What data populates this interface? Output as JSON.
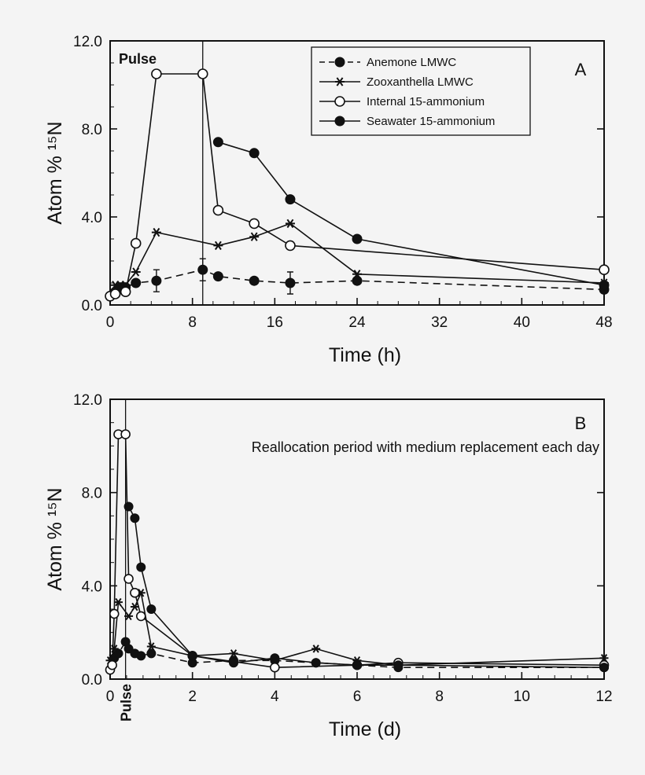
{
  "chart_data": [
    {
      "panel": "A",
      "type": "line",
      "xlabel": "Time (h)",
      "ylabel": "Atom % ¹⁵N",
      "xlim": [
        0,
        48
      ],
      "ylim": [
        0,
        12
      ],
      "xticks": [
        0,
        8,
        16,
        24,
        32,
        40,
        48
      ],
      "yticks": [
        0,
        4,
        8,
        12
      ],
      "ytick_labels": [
        "0.0",
        "4.0",
        "8.0",
        "12.0"
      ],
      "grid": false,
      "legend_position": "top-right",
      "annotations": [
        {
          "text": "Pulse",
          "at_x": 9
        }
      ],
      "series": [
        {
          "name": "Anemone LMWC",
          "marker": "filled-circle",
          "line": "dashed",
          "x": [
            0,
            0.5,
            1,
            1.5,
            2.5,
            4.5,
            9,
            10.5,
            14,
            17.5,
            24,
            48
          ],
          "y": [
            0.4,
            0.6,
            0.8,
            0.8,
            1.0,
            1.1,
            1.6,
            1.3,
            1.1,
            1.0,
            1.1,
            0.7
          ],
          "yerr_points": [
            {
              "x": 4.5,
              "y": 1.1
            },
            {
              "x": 9,
              "y": 1.6
            },
            {
              "x": 17.5,
              "y": 1.0
            }
          ]
        },
        {
          "name": "Zooxanthella LMWC",
          "marker": "asterisk",
          "line": "solid",
          "x": [
            0,
            0.5,
            1,
            1.5,
            2.5,
            4.5,
            10.5,
            14,
            17.5,
            24,
            48
          ],
          "y": [
            0.4,
            0.9,
            0.9,
            0.9,
            1.5,
            3.3,
            2.7,
            3.1,
            3.7,
            1.4,
            1.0
          ]
        },
        {
          "name": "Internal 15-ammonium",
          "marker": "open-circle",
          "line": "solid",
          "x": [
            0,
            0.5,
            1.5,
            2.5,
            4.5,
            9,
            10.5,
            14,
            17.5,
            48
          ],
          "y": [
            0.4,
            0.5,
            0.6,
            2.8,
            10.5,
            10.5,
            4.3,
            3.7,
            2.7,
            1.6
          ]
        },
        {
          "name": "Seawater 15-ammonium",
          "marker": "filled-circle",
          "line": "solid",
          "x": [
            10.5,
            14,
            17.5,
            24,
            48
          ],
          "y": [
            7.4,
            6.9,
            4.8,
            3.0,
            0.9
          ]
        }
      ]
    },
    {
      "panel": "B",
      "type": "line",
      "xlabel": "Time (d)",
      "ylabel": "Atom % ¹⁵N",
      "xlim": [
        0,
        12
      ],
      "ylim": [
        0,
        12
      ],
      "xticks": [
        0,
        2,
        4,
        6,
        8,
        10,
        12
      ],
      "yticks": [
        0,
        4,
        8,
        12
      ],
      "ytick_labels": [
        "0.0",
        "4.0",
        "8.0",
        "12.0"
      ],
      "grid": false,
      "annotations": [
        {
          "text": "Pulse",
          "at_x": 0.375
        },
        {
          "text": "Reallocation period with medium replacement each day"
        }
      ],
      "series": [
        {
          "name": "Anemone LMWC",
          "marker": "filled-circle",
          "line": "dashed",
          "x": [
            0,
            0.1,
            0.2,
            0.375,
            0.45,
            0.6,
            0.75,
            1,
            2,
            3,
            4,
            5,
            6,
            7,
            12
          ],
          "y": [
            0.4,
            0.9,
            1.1,
            1.6,
            1.3,
            1.1,
            1.0,
            1.1,
            0.7,
            0.8,
            0.8,
            0.7,
            0.6,
            0.5,
            0.5
          ]
        },
        {
          "name": "Zooxanthella LMWC",
          "marker": "asterisk",
          "line": "solid",
          "x": [
            0,
            0.05,
            0.1,
            0.2,
            0.45,
            0.6,
            0.75,
            1,
            2,
            3,
            4,
            5,
            6,
            7,
            12
          ],
          "y": [
            0.8,
            0.9,
            1.3,
            3.3,
            2.7,
            3.1,
            3.7,
            1.4,
            1.0,
            1.1,
            0.8,
            1.3,
            0.8,
            0.6,
            0.9
          ]
        },
        {
          "name": "Internal 15-ammonium",
          "marker": "open-circle",
          "line": "solid",
          "x": [
            0,
            0.05,
            0.1,
            0.2,
            0.375,
            0.45,
            0.6,
            0.75,
            2,
            4,
            6,
            7,
            12
          ],
          "y": [
            0.4,
            0.6,
            2.8,
            10.5,
            10.5,
            4.3,
            3.7,
            2.7,
            1.0,
            0.5,
            0.6,
            0.7,
            0.6
          ]
        },
        {
          "name": "Seawater 15-ammonium",
          "marker": "filled-circle",
          "line": "solid",
          "x": [
            0.45,
            0.6,
            0.75,
            1,
            2,
            3,
            4,
            5,
            6,
            7,
            12
          ],
          "y": [
            7.4,
            6.9,
            4.8,
            3.0,
            1.0,
            0.7,
            0.9,
            0.7,
            0.6,
            0.6,
            0.5
          ]
        }
      ]
    }
  ]
}
